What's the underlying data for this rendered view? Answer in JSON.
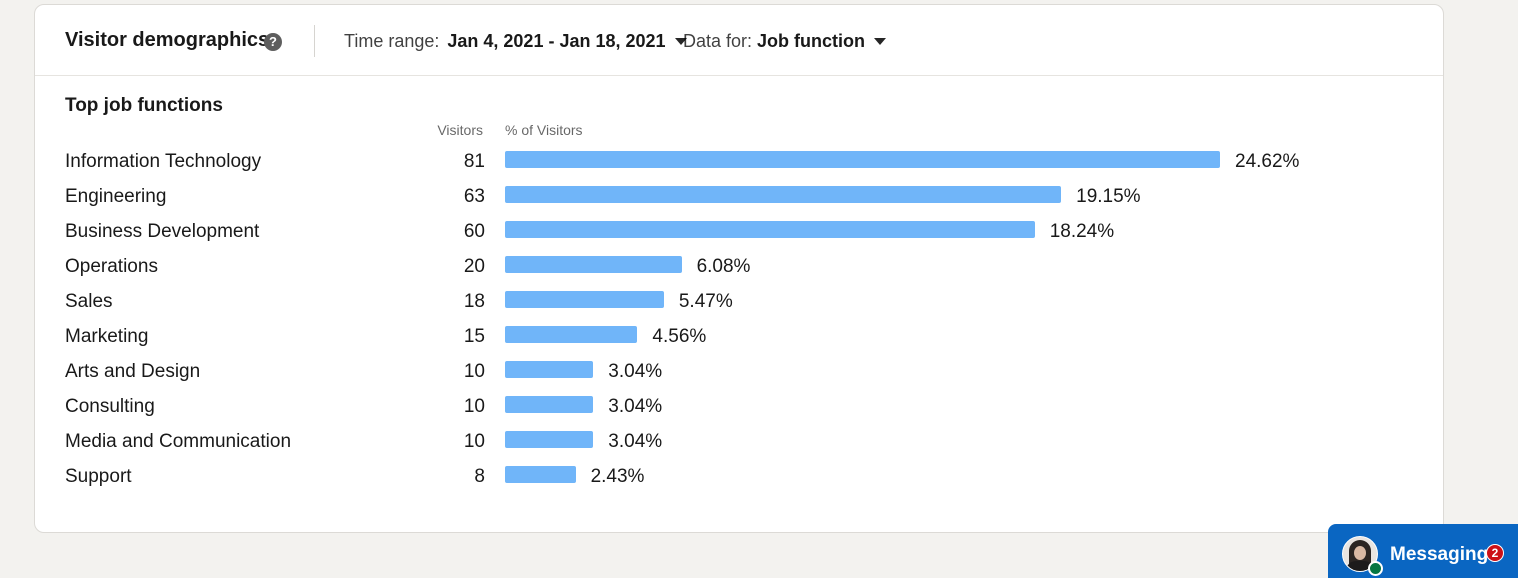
{
  "header": {
    "title": "Visitor demographics",
    "help_icon": "question-circle-icon",
    "time_range_label": "Time range:",
    "time_range_value": "Jan 4, 2021 - Jan 18, 2021",
    "data_for_label": "Data for:",
    "data_for_value": "Job function"
  },
  "section": {
    "title": "Top job functions",
    "col_visitors": "Visitors",
    "col_pct": "% of Visitors"
  },
  "chart_data": {
    "type": "bar",
    "orientation": "horizontal",
    "categories": [
      "Information Technology",
      "Engineering",
      "Business Development",
      "Operations",
      "Sales",
      "Marketing",
      "Arts and Design",
      "Consulting",
      "Media and Communication",
      "Support"
    ],
    "visitors": [
      "81",
      "63",
      "60",
      "20",
      "18",
      "15",
      "10",
      "10",
      "10",
      "8"
    ],
    "percent_labels": [
      "24.62%",
      "19.15%",
      "18.24%",
      "6.08%",
      "5.47%",
      "4.56%",
      "3.04%",
      "3.04%",
      "3.04%",
      "2.43%"
    ],
    "values": [
      24.62,
      19.15,
      18.24,
      6.08,
      5.47,
      4.56,
      3.04,
      3.04,
      3.04,
      2.43
    ],
    "bar_color": "#70b5f9"
  },
  "messaging": {
    "label": "Messaging",
    "badge": "2",
    "accent": "#0a66c2",
    "badge_color": "#cc1016",
    "presence_color": "#057642"
  }
}
